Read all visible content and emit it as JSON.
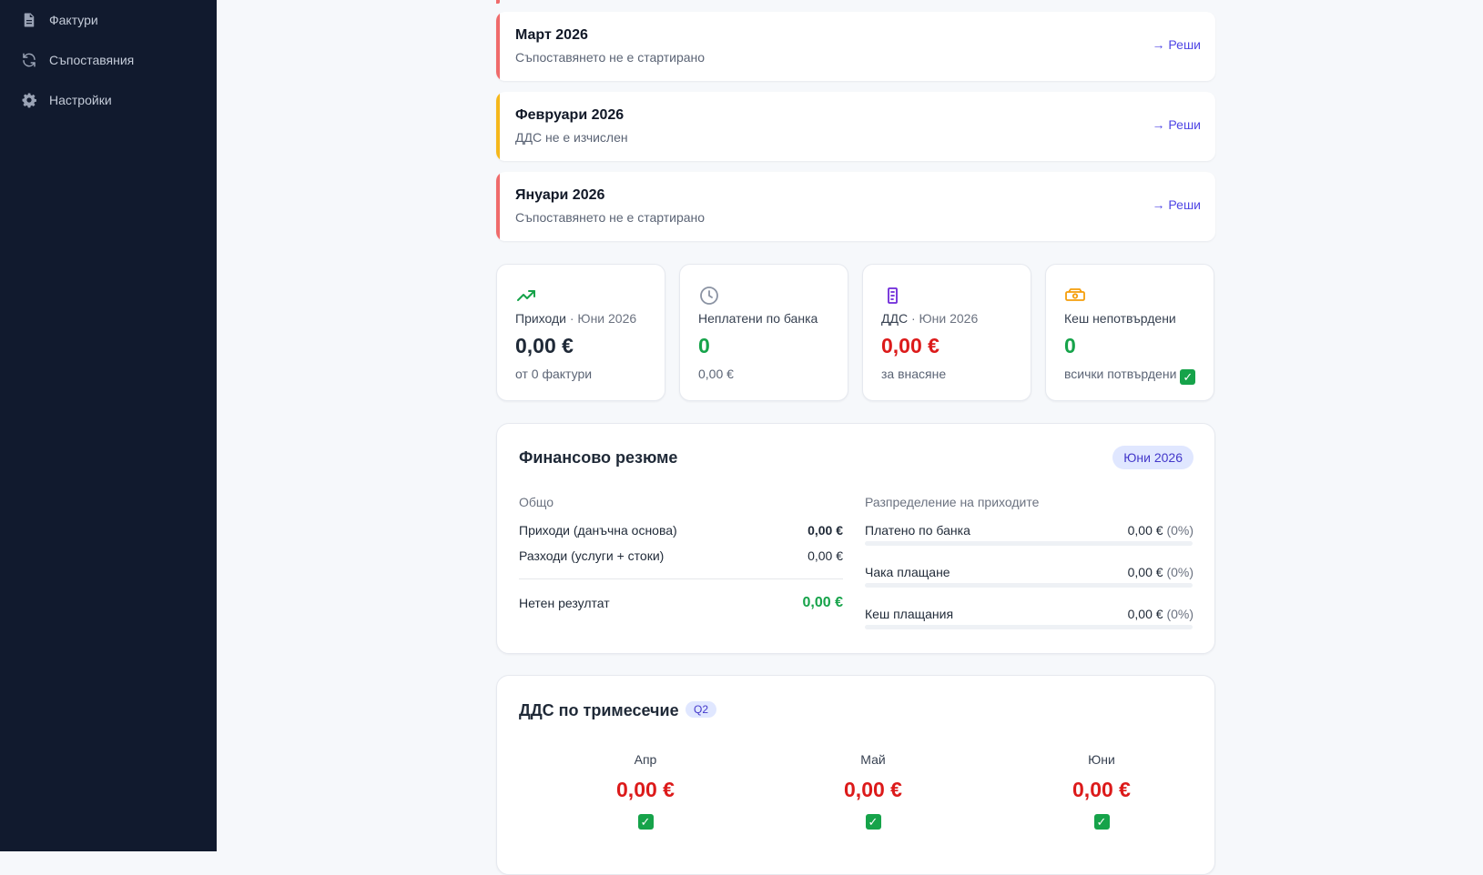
{
  "sidebar": {
    "items": [
      {
        "label": "Фактури",
        "icon": "document-icon"
      },
      {
        "label": "Съпоставяния",
        "icon": "refresh-icon"
      },
      {
        "label": "Настройки",
        "icon": "gear-icon"
      }
    ]
  },
  "alerts": [
    {
      "title": "Март 2026",
      "subtitle": "Съпоставянето не е стартирано",
      "action": "→ Реши",
      "color": "#ef6b6b"
    },
    {
      "title": "Февруари 2026",
      "subtitle": "ДДС не е изчислен",
      "action": "→ Реши",
      "color": "#f5b81c"
    },
    {
      "title": "Януари 2026",
      "subtitle": "Съпоставянето не е стартирано",
      "action": "→ Реши",
      "color": "#ef6b6b"
    }
  ],
  "stats": [
    {
      "icon": "trending-up-icon",
      "label": "Приходи",
      "label_dim": " · Юни 2026",
      "value": "0,00 €",
      "value_color": "#1f2937",
      "sub": "от 0 фактури"
    },
    {
      "icon": "clock-icon",
      "label": "Неплатени по банка",
      "label_dim": "",
      "value": "0",
      "value_color": "#16a34a",
      "sub": "0,00 €"
    },
    {
      "icon": "receipt-icon",
      "label": "ДДС",
      "label_dim": " · Юни 2026",
      "value": "0,00 €",
      "value_color": "#dc1a1a",
      "sub": "за внасяне"
    },
    {
      "icon": "cash-icon",
      "label": "Кеш непотвърдени",
      "label_dim": "",
      "value": "0",
      "value_color": "#16a34a",
      "sub": "всички потвърдени",
      "sub_check": "✓"
    }
  ],
  "summary": {
    "title": "Финансово резюме",
    "period": "Юни 2026",
    "total_label": "Общо",
    "income_label": "Приходи (данъчна основа)",
    "income_value": "0,00 €",
    "expense_label": "Разходи (услуги + стоки)",
    "expense_value": "0,00 €",
    "net_label": "Нетен резултат",
    "net_value": "0,00 €",
    "distribution_label": "Разпределение на приходите",
    "distribution": [
      {
        "label": "Платено по банка",
        "value": "0,00 €",
        "pct": "(0%)",
        "fraction": 0
      },
      {
        "label": "Чака плащане",
        "value": "0,00 €",
        "pct": "(0%)",
        "fraction": 0
      },
      {
        "label": "Кеш плащания",
        "value": "0,00 €",
        "pct": "(0%)",
        "fraction": 0
      }
    ]
  },
  "vat": {
    "title": "ДДС по тримесечие",
    "quarter": "Q2",
    "months": [
      {
        "name": "Апр",
        "value": "0,00 €",
        "check": "✓"
      },
      {
        "name": "Май",
        "value": "0,00 €",
        "check": "✓"
      },
      {
        "name": "Юни",
        "value": "0,00 €",
        "check": "✓"
      }
    ]
  }
}
